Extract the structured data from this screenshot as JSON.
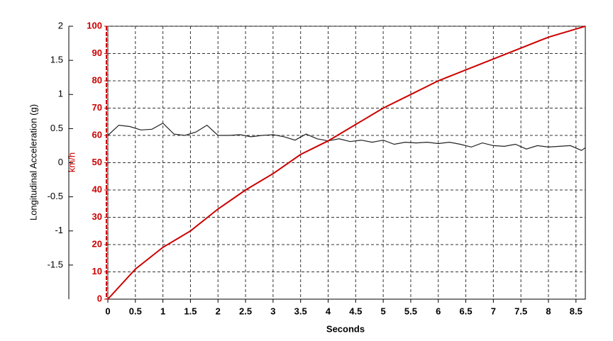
{
  "chart_data": {
    "type": "line",
    "x_label": "Seconds",
    "y_label": "Longitudinal Acceleration (g)",
    "y2_label": "km/h",
    "xlim": [
      0,
      8.67
    ],
    "xticks": [
      0,
      0.5,
      1,
      1.5,
      2,
      2.5,
      3,
      3.5,
      4,
      4.5,
      5,
      5.5,
      6,
      6.5,
      7,
      7.5,
      8,
      8.5
    ],
    "ylim": [
      -2,
      2
    ],
    "yticks": [
      -1.5,
      -1,
      -0.5,
      0,
      0.5,
      1,
      1.5,
      2
    ],
    "y2lim": [
      0,
      100
    ],
    "y2ticks": [
      0,
      10,
      20,
      30,
      40,
      50,
      60,
      70,
      80,
      90,
      100
    ],
    "grid": true,
    "series": [
      {
        "color": "#222222",
        "axis": "y",
        "x": [
          0,
          0.2,
          0.4,
          0.6,
          0.8,
          1.0,
          1.2,
          1.4,
          1.6,
          1.8,
          2.0,
          2.2,
          2.4,
          2.6,
          2.8,
          3.0,
          3.2,
          3.4,
          3.6,
          3.8,
          4.0,
          4.2,
          4.4,
          4.6,
          4.8,
          5.0,
          5.2,
          5.4,
          5.6,
          5.8,
          6.0,
          6.2,
          6.4,
          6.6,
          6.8,
          7.0,
          7.2,
          7.4,
          7.6,
          7.8,
          8.0,
          8.2,
          8.4,
          8.6,
          8.67
        ],
        "values": [
          0.4,
          0.55,
          0.53,
          0.48,
          0.49,
          0.58,
          0.42,
          0.4,
          0.45,
          0.55,
          0.4,
          0.4,
          0.41,
          0.38,
          0.4,
          0.41,
          0.38,
          0.33,
          0.42,
          0.35,
          0.32,
          0.35,
          0.31,
          0.33,
          0.3,
          0.33,
          0.27,
          0.3,
          0.29,
          0.3,
          0.28,
          0.3,
          0.27,
          0.23,
          0.29,
          0.25,
          0.24,
          0.27,
          0.2,
          0.25,
          0.23,
          0.24,
          0.25,
          0.18,
          0.22
        ]
      },
      {
        "color": "#cc0000",
        "axis": "y2",
        "x": [
          0,
          0.5,
          1,
          1.5,
          2,
          2.5,
          3,
          3.5,
          4,
          4.5,
          5,
          5.5,
          6,
          6.5,
          7,
          7.5,
          8,
          8.5,
          8.67
        ],
        "values": [
          0,
          11,
          19,
          25,
          33,
          40,
          46,
          53,
          58,
          64,
          70,
          75,
          80,
          84,
          88,
          92,
          96,
          99,
          100
        ]
      }
    ]
  }
}
